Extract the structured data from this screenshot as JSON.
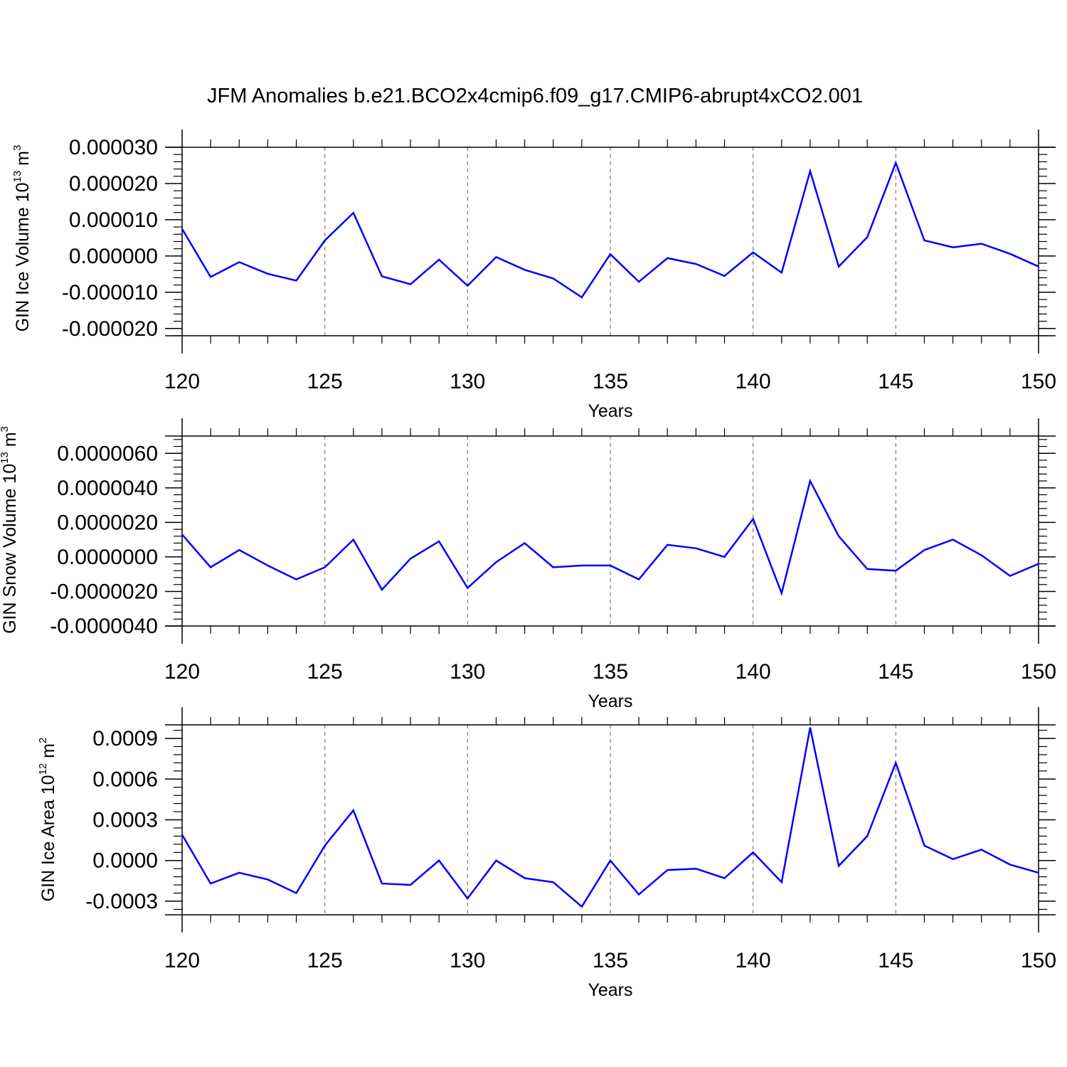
{
  "page_title": "JFM Anomalies b.e21.BCO2x4cmip6.f09_g17.CMIP6-abrupt4xCO2.001",
  "colors": {
    "line": "#0000ff",
    "axis": "#000000",
    "grid": "#777777"
  },
  "chart_data": [
    {
      "type": "line",
      "xlabel": "Years",
      "ylabel": {
        "main": "GIN Ice Volume 10",
        "exp": "13",
        "unit": " m",
        "unit_exp": "3"
      },
      "xlim": [
        120,
        150
      ],
      "ylim": [
        -2.2e-05,
        3e-05
      ],
      "xticks": [
        120,
        125,
        130,
        135,
        140,
        145,
        150
      ],
      "xtick_labels": [
        "120",
        "125",
        "130",
        "135",
        "140",
        "145",
        "150"
      ],
      "yticks": [
        -2e-05,
        -1e-05,
        0.0,
        1e-05,
        2e-05,
        3e-05
      ],
      "ytick_labels": [
        "-0.000020",
        "-0.000010",
        "0.000000",
        "0.000010",
        "0.000020",
        "0.000030"
      ],
      "grid": "vertical-dashed",
      "x": [
        120,
        121,
        122,
        123,
        124,
        125,
        126,
        127,
        128,
        129,
        130,
        131,
        132,
        133,
        134,
        135,
        136,
        137,
        138,
        139,
        140,
        141,
        142,
        143,
        144,
        145,
        146,
        147,
        148,
        149,
        150
      ],
      "values": [
        7.5e-06,
        -5.8e-06,
        -1.7e-06,
        -4.9e-06,
        -6.8e-06,
        4.3e-06,
        1.19e-05,
        -5.6e-06,
        -7.8e-06,
        -1e-06,
        -8.2e-06,
        -3e-07,
        -3.8e-06,
        -6.2e-06,
        -1.14e-05,
        5e-07,
        -7.1e-06,
        -6e-07,
        -2.2e-06,
        -5.5e-06,
        1e-06,
        -4.6e-06,
        2.34e-05,
        -2.9e-06,
        5.2e-06,
        2.57e-05,
        4.3e-06,
        2.4e-06,
        3.4e-06,
        6e-07,
        -2.9e-06
      ]
    },
    {
      "type": "line",
      "xlabel": "Years",
      "ylabel": {
        "main": "GIN Snow Volume 10",
        "exp": "13",
        "unit": " m",
        "unit_exp": "3"
      },
      "xlim": [
        120,
        150
      ],
      "ylim": [
        -4e-06,
        7e-06
      ],
      "xticks": [
        120,
        125,
        130,
        135,
        140,
        145,
        150
      ],
      "xtick_labels": [
        "120",
        "125",
        "130",
        "135",
        "140",
        "145",
        "150"
      ],
      "yticks": [
        -4e-06,
        -2e-06,
        0.0,
        2e-06,
        4e-06,
        6e-06
      ],
      "ytick_labels": [
        "-0.0000040",
        "-0.0000020",
        "0.0000000",
        "0.0000020",
        "0.0000040",
        "0.0000060"
      ],
      "grid": "vertical-dashed",
      "x": [
        120,
        121,
        122,
        123,
        124,
        125,
        126,
        127,
        128,
        129,
        130,
        131,
        132,
        133,
        134,
        135,
        136,
        137,
        138,
        139,
        140,
        141,
        142,
        143,
        144,
        145,
        146,
        147,
        148,
        149,
        150
      ],
      "values": [
        1.3e-06,
        -6e-07,
        4e-07,
        -5e-07,
        -1.3e-06,
        -6e-07,
        1e-06,
        -1.9e-06,
        -1e-07,
        9e-07,
        -1.8e-06,
        -3e-07,
        8e-07,
        -6e-07,
        -5e-07,
        -5e-07,
        -1.3e-06,
        7e-07,
        5e-07,
        0.0,
        2.2e-06,
        -2.1e-06,
        4.4e-06,
        1.2e-06,
        -7e-07,
        -8e-07,
        4e-07,
        1e-06,
        1e-07,
        -1.1e-06,
        -4e-07
      ]
    },
    {
      "type": "line",
      "xlabel": "Years",
      "ylabel": {
        "main": "GIN Ice Area 10",
        "exp": "12",
        "unit": " m",
        "unit_exp": "2"
      },
      "xlim": [
        120,
        150
      ],
      "ylim": [
        -0.0004,
        0.001
      ],
      "xticks": [
        120,
        125,
        130,
        135,
        140,
        145,
        150
      ],
      "xtick_labels": [
        "120",
        "125",
        "130",
        "135",
        "140",
        "145",
        "150"
      ],
      "yticks": [
        -0.0003,
        0.0,
        0.0003,
        0.0006,
        0.0009
      ],
      "ytick_labels": [
        "-0.0003",
        "0.0000",
        "0.0003",
        "0.0006",
        "0.0009"
      ],
      "grid": "vertical-dashed",
      "x": [
        120,
        121,
        122,
        123,
        124,
        125,
        126,
        127,
        128,
        129,
        130,
        131,
        132,
        133,
        134,
        135,
        136,
        137,
        138,
        139,
        140,
        141,
        142,
        143,
        144,
        145,
        146,
        147,
        148,
        149,
        150
      ],
      "values": [
        0.00019,
        -0.00017,
        -9e-05,
        -0.00014,
        -0.00024,
        0.00011,
        0.00037,
        -0.00017,
        -0.00018,
        0.0,
        -0.00028,
        0.0,
        -0.00013,
        -0.00016,
        -0.00034,
        0.0,
        -0.00025,
        -7e-05,
        -6e-05,
        -0.00013,
        6e-05,
        -0.00016,
        0.00098,
        -4e-05,
        0.00018,
        0.00072,
        0.00011,
        1e-05,
        8e-05,
        -3e-05,
        -9e-05
      ]
    }
  ]
}
